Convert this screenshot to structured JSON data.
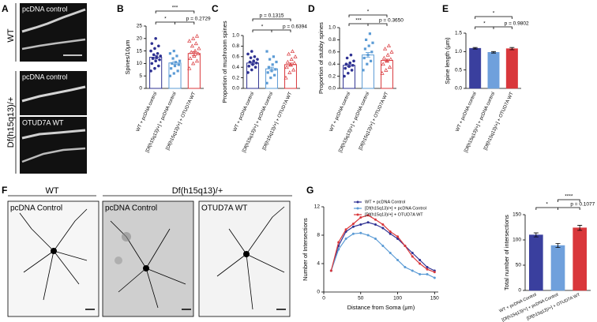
{
  "panel_letters": [
    "A",
    "B",
    "C",
    "D",
    "E",
    "F",
    "G"
  ],
  "images": {
    "A_rows": [
      "WT",
      "Df(h15q13)/+"
    ],
    "A_labels": [
      "pcDNA control",
      "pcDNA control",
      "OTUD7A WT"
    ],
    "F_headers": [
      "WT",
      "Df(h15q13)/+"
    ],
    "F_labels": [
      "pcDNA Control",
      "pcDNA Control",
      "OTUD7A WT"
    ]
  },
  "chart_data": [
    {
      "type": "bar",
      "style": "outline",
      "ylabel": "Spines/10μm",
      "categories": [
        "WT + pcDNA control",
        "[Df(h15q13)/+] + pcDNA control",
        "[Df(h15q13)/+] + OTUD7A WT"
      ],
      "colors": [
        "#2e3192",
        "#5b9bd5",
        "#d9373b"
      ],
      "values": [
        12.5,
        10.2,
        14.0
      ],
      "errors": [
        0.7,
        0.6,
        0.8
      ],
      "points": [
        [
          7,
          8,
          9,
          10,
          11,
          11.5,
          12,
          12.5,
          13,
          13.5,
          14,
          15,
          16,
          17,
          18,
          20
        ],
        [
          5,
          6,
          7,
          8,
          9,
          9.5,
          10,
          10.5,
          11,
          12,
          13,
          14,
          15
        ],
        [
          8,
          10,
          11,
          12,
          13,
          14,
          14.5,
          15,
          16,
          17,
          18,
          19,
          20,
          21
        ]
      ],
      "ylim": [
        0,
        25
      ],
      "yticks": [
        0,
        5,
        10,
        15,
        20,
        25
      ],
      "annotations": [
        "***",
        "*",
        "p = 0.2729"
      ]
    },
    {
      "type": "bar",
      "style": "outline",
      "ylabel": "Proportion of mushroom spines",
      "categories": [
        "WT + pcDNA control",
        "[Df(h15q13)/+] + pcDNA control",
        "[Df(h15q13)/+] + OTUD7A WT"
      ],
      "colors": [
        "#2e3192",
        "#5b9bd5",
        "#d9373b"
      ],
      "values": [
        0.48,
        0.37,
        0.45
      ],
      "errors": [
        0.02,
        0.03,
        0.03
      ],
      "points": [
        [
          0.3,
          0.35,
          0.4,
          0.42,
          0.45,
          0.48,
          0.5,
          0.52,
          0.55,
          0.58,
          0.6,
          0.65,
          0.7
        ],
        [
          0.1,
          0.2,
          0.25,
          0.3,
          0.33,
          0.36,
          0.4,
          0.45,
          0.5,
          0.55,
          0.6,
          0.7
        ],
        [
          0.2,
          0.3,
          0.35,
          0.4,
          0.45,
          0.48,
          0.5,
          0.55,
          0.6,
          0.65,
          0.7
        ]
      ],
      "ylim": [
        0,
        1
      ],
      "yticks": [
        {
          "value": 0,
          "label": "0.0"
        },
        0.2,
        0.4,
        0.6,
        0.8,
        {
          "value": 1,
          "label": "1.0"
        }
      ],
      "annotations": [
        "p = 0.1315",
        "*",
        "p = 0.6394"
      ]
    },
    {
      "type": "bar",
      "style": "outline",
      "ylabel": "Proportion of stubby spines",
      "categories": [
        "WT + pcDNA control",
        "[Df(h15q13)/+] + pcDNA control",
        "[Df(h15q13)/+] + OTUD7A WT"
      ],
      "colors": [
        "#2e3192",
        "#5b9bd5",
        "#d9373b"
      ],
      "values": [
        0.38,
        0.55,
        0.46
      ],
      "errors": [
        0.02,
        0.04,
        0.02
      ],
      "points": [
        [
          0.2,
          0.25,
          0.3,
          0.33,
          0.36,
          0.38,
          0.4,
          0.42,
          0.45,
          0.5,
          0.55
        ],
        [
          0.3,
          0.4,
          0.45,
          0.5,
          0.55,
          0.6,
          0.65,
          0.7,
          0.75,
          0.8,
          0.9
        ],
        [
          0.25,
          0.3,
          0.35,
          0.4,
          0.45,
          0.48,
          0.5,
          0.55,
          0.6,
          0.65,
          0.7
        ]
      ],
      "ylim": [
        0,
        1
      ],
      "yticks": [
        {
          "value": 0,
          "label": "0.0"
        },
        0.2,
        0.4,
        0.6,
        0.8,
        {
          "value": 1,
          "label": "1.0"
        }
      ],
      "annotations": [
        "*",
        "***",
        "p = 0.3650"
      ]
    },
    {
      "type": "bar",
      "style": "filled",
      "ylabel": "Spine length (μm)",
      "categories": [
        "WT + pcDNA control",
        "[Df(h15q13)/+] + pcDNA control",
        "[Df(h15q13)/+] + OTUD7A WT"
      ],
      "colors": [
        "#3a3f9e",
        "#6fa0dc",
        "#d9373b"
      ],
      "values": [
        1.09,
        0.98,
        1.08
      ],
      "errors": [
        0.02,
        0.02,
        0.03
      ],
      "ylim": [
        0,
        1.5
      ],
      "yticks": [
        {
          "value": 0,
          "label": "0.0"
        },
        0.5,
        {
          "value": 1,
          "label": "1.0"
        },
        1.5
      ],
      "annotations": [
        "*",
        "*",
        "p = 0.9802"
      ]
    },
    {
      "type": "line",
      "ylabel": "Number of Intersections",
      "xlabel": "Distance from Soma (μm)",
      "x": [
        10,
        20,
        30,
        40,
        50,
        60,
        70,
        80,
        90,
        100,
        110,
        120,
        130,
        140,
        150
      ],
      "series": [
        {
          "name": "WT + pcDNA Control",
          "color": "#2e3192",
          "values": [
            3,
            6.5,
            8.5,
            9.2,
            9.5,
            9.8,
            9.5,
            9,
            8.2,
            7.5,
            6.5,
            5.5,
            4.5,
            3.5,
            3
          ]
        },
        {
          "name": "[Df(h15q13)/+] + pcDNA Control",
          "color": "#5b9bd5",
          "values": [
            3,
            6,
            7.5,
            8.2,
            8.3,
            8,
            7.5,
            6.5,
            5.5,
            4.5,
            3.5,
            3,
            2.5,
            2.5,
            2
          ]
        },
        {
          "name": "[Df(h15q13)/+] + OTUD7A WT",
          "color": "#d9373b",
          "values": [
            3,
            7,
            8.8,
            9.6,
            10.5,
            10.8,
            10.2,
            9.5,
            8.5,
            7.8,
            6.5,
            5,
            4,
            3.2,
            2.8
          ]
        }
      ],
      "xlim": [
        0,
        155
      ],
      "xticks": [
        0,
        50,
        100,
        150
      ],
      "ylim": [
        0,
        12
      ],
      "yticks": [
        0,
        4,
        8,
        12
      ]
    },
    {
      "type": "bar",
      "style": "filled",
      "ylabel": "Total number of intersections",
      "categories": [
        "WT + pcDNA Control",
        "[Df(h15q13)/+] + pcDNA Control",
        "[Df(h15q13)/+] + OTUD7A WT"
      ],
      "colors": [
        "#3a3f9e",
        "#6fa0dc",
        "#d9373b"
      ],
      "values": [
        110,
        89,
        124
      ],
      "errors": [
        4,
        4,
        5
      ],
      "ylim": [
        0,
        150
      ],
      "yticks": [
        0,
        50,
        100,
        150
      ],
      "annotations": [
        "****",
        "*",
        "p = 0.1077"
      ]
    }
  ]
}
